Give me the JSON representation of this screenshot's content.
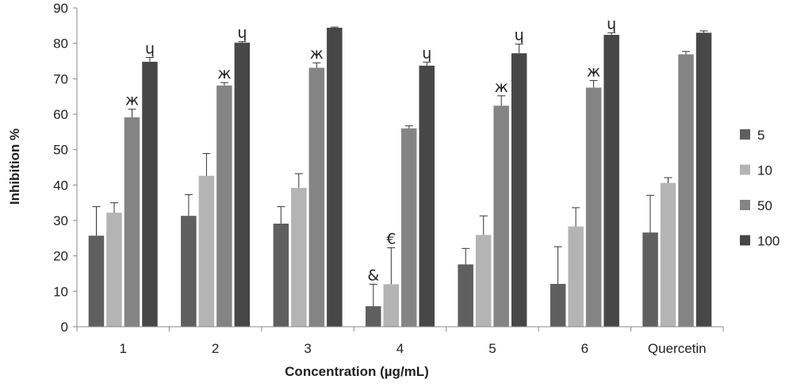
{
  "chart_data": {
    "type": "bar",
    "xlabel": "Concentration (µg/mL)",
    "ylabel": "Inhibition %",
    "ylim": [
      0,
      90
    ],
    "yticks": [
      "0",
      "10",
      "20",
      "30",
      "40",
      "50",
      "60",
      "70",
      "80",
      "90"
    ],
    "categories": [
      "1",
      "2",
      "3",
      "4",
      "5",
      "6",
      "Quercetin"
    ],
    "legend_position": "right",
    "grid": false,
    "series": [
      {
        "name": "5",
        "color": "#5f5f5f",
        "values": [
          25.7,
          31.3,
          29.1,
          5.8,
          17.6,
          12.1,
          26.6
        ],
        "errors": [
          8.2,
          6.0,
          4.8,
          6.2,
          4.5,
          10.5,
          10.5
        ]
      },
      {
        "name": "10",
        "color": "#b4b4b4",
        "values": [
          32.2,
          42.6,
          39.2,
          12.0,
          25.9,
          28.3,
          40.6
        ],
        "errors": [
          2.8,
          6.3,
          4.0,
          10.3,
          5.4,
          5.3,
          1.5
        ]
      },
      {
        "name": "50",
        "color": "#848484",
        "values": [
          59.1,
          68.1,
          73.1,
          56.0,
          62.4,
          67.5,
          76.9
        ],
        "errors": [
          2.3,
          0.8,
          1.4,
          0.7,
          2.8,
          2.0,
          0.8
        ]
      },
      {
        "name": "100",
        "color": "#474747",
        "values": [
          74.8,
          80.2,
          84.4,
          73.7,
          77.2,
          82.4,
          83.0
        ],
        "errors": [
          1.2,
          0.3,
          0.2,
          1.0,
          2.6,
          0.6,
          0.5
        ]
      }
    ],
    "annotations": [
      {
        "category": "1",
        "series": "50",
        "text": "ж"
      },
      {
        "category": "1",
        "series": "100",
        "text": "ɥ"
      },
      {
        "category": "2",
        "series": "50",
        "text": "ж"
      },
      {
        "category": "2",
        "series": "100",
        "text": "ɥ"
      },
      {
        "category": "3",
        "series": "50",
        "text": "ж"
      },
      {
        "category": "4",
        "series": "5",
        "text": "&"
      },
      {
        "category": "4",
        "series": "10",
        "text": "€"
      },
      {
        "category": "4",
        "series": "100",
        "text": "ɥ"
      },
      {
        "category": "5",
        "series": "50",
        "text": "ж"
      },
      {
        "category": "5",
        "series": "100",
        "text": "ɥ"
      },
      {
        "category": "6",
        "series": "50",
        "text": "ж"
      },
      {
        "category": "6",
        "series": "100",
        "text": "ɥ"
      }
    ]
  }
}
